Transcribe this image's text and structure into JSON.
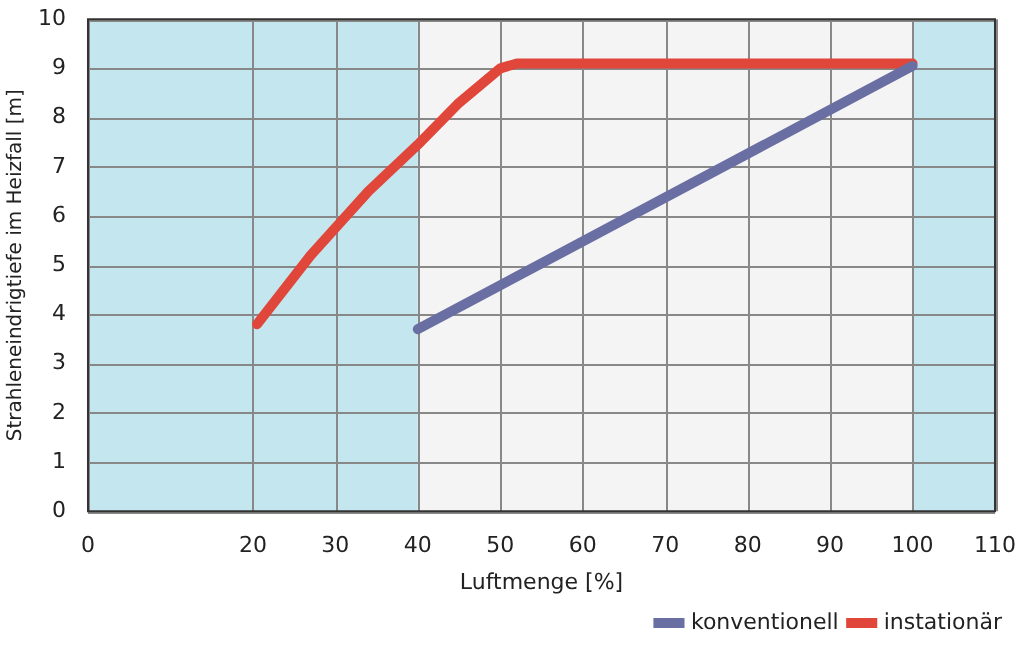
{
  "chart_data": {
    "type": "line",
    "xlabel": "Luftmenge [%]",
    "ylabel": "Strahleneindrigtiefe im Heizfall [m]",
    "xlim": [
      0,
      110
    ],
    "xticks": [
      0,
      20,
      30,
      40,
      50,
      60,
      70,
      80,
      90,
      100,
      110
    ],
    "ylim": [
      0,
      10
    ],
    "yticks": [
      0,
      1,
      2,
      3,
      4,
      5,
      6,
      7,
      8,
      9,
      10
    ],
    "grid": true,
    "legend": "bottom right",
    "marker": "none",
    "line_style": "solid",
    "bands": [
      {
        "axis": "x",
        "from": 0,
        "to": 40,
        "color": "#c3e6ef"
      },
      {
        "axis": "x",
        "from": 100,
        "to": 110,
        "color": "#c3e6ef"
      }
    ],
    "series": [
      {
        "name": "konventionell",
        "color": "#6a6fa3",
        "x": [
          40,
          100
        ],
        "values": [
          3.7,
          9.05
        ]
      },
      {
        "name": "instationär",
        "color": "#e0463a",
        "x": [
          20.5,
          27,
          34,
          40,
          45,
          50,
          52,
          100
        ],
        "values": [
          3.8,
          5.2,
          6.5,
          7.45,
          8.3,
          9.0,
          9.1,
          9.1
        ]
      }
    ]
  }
}
